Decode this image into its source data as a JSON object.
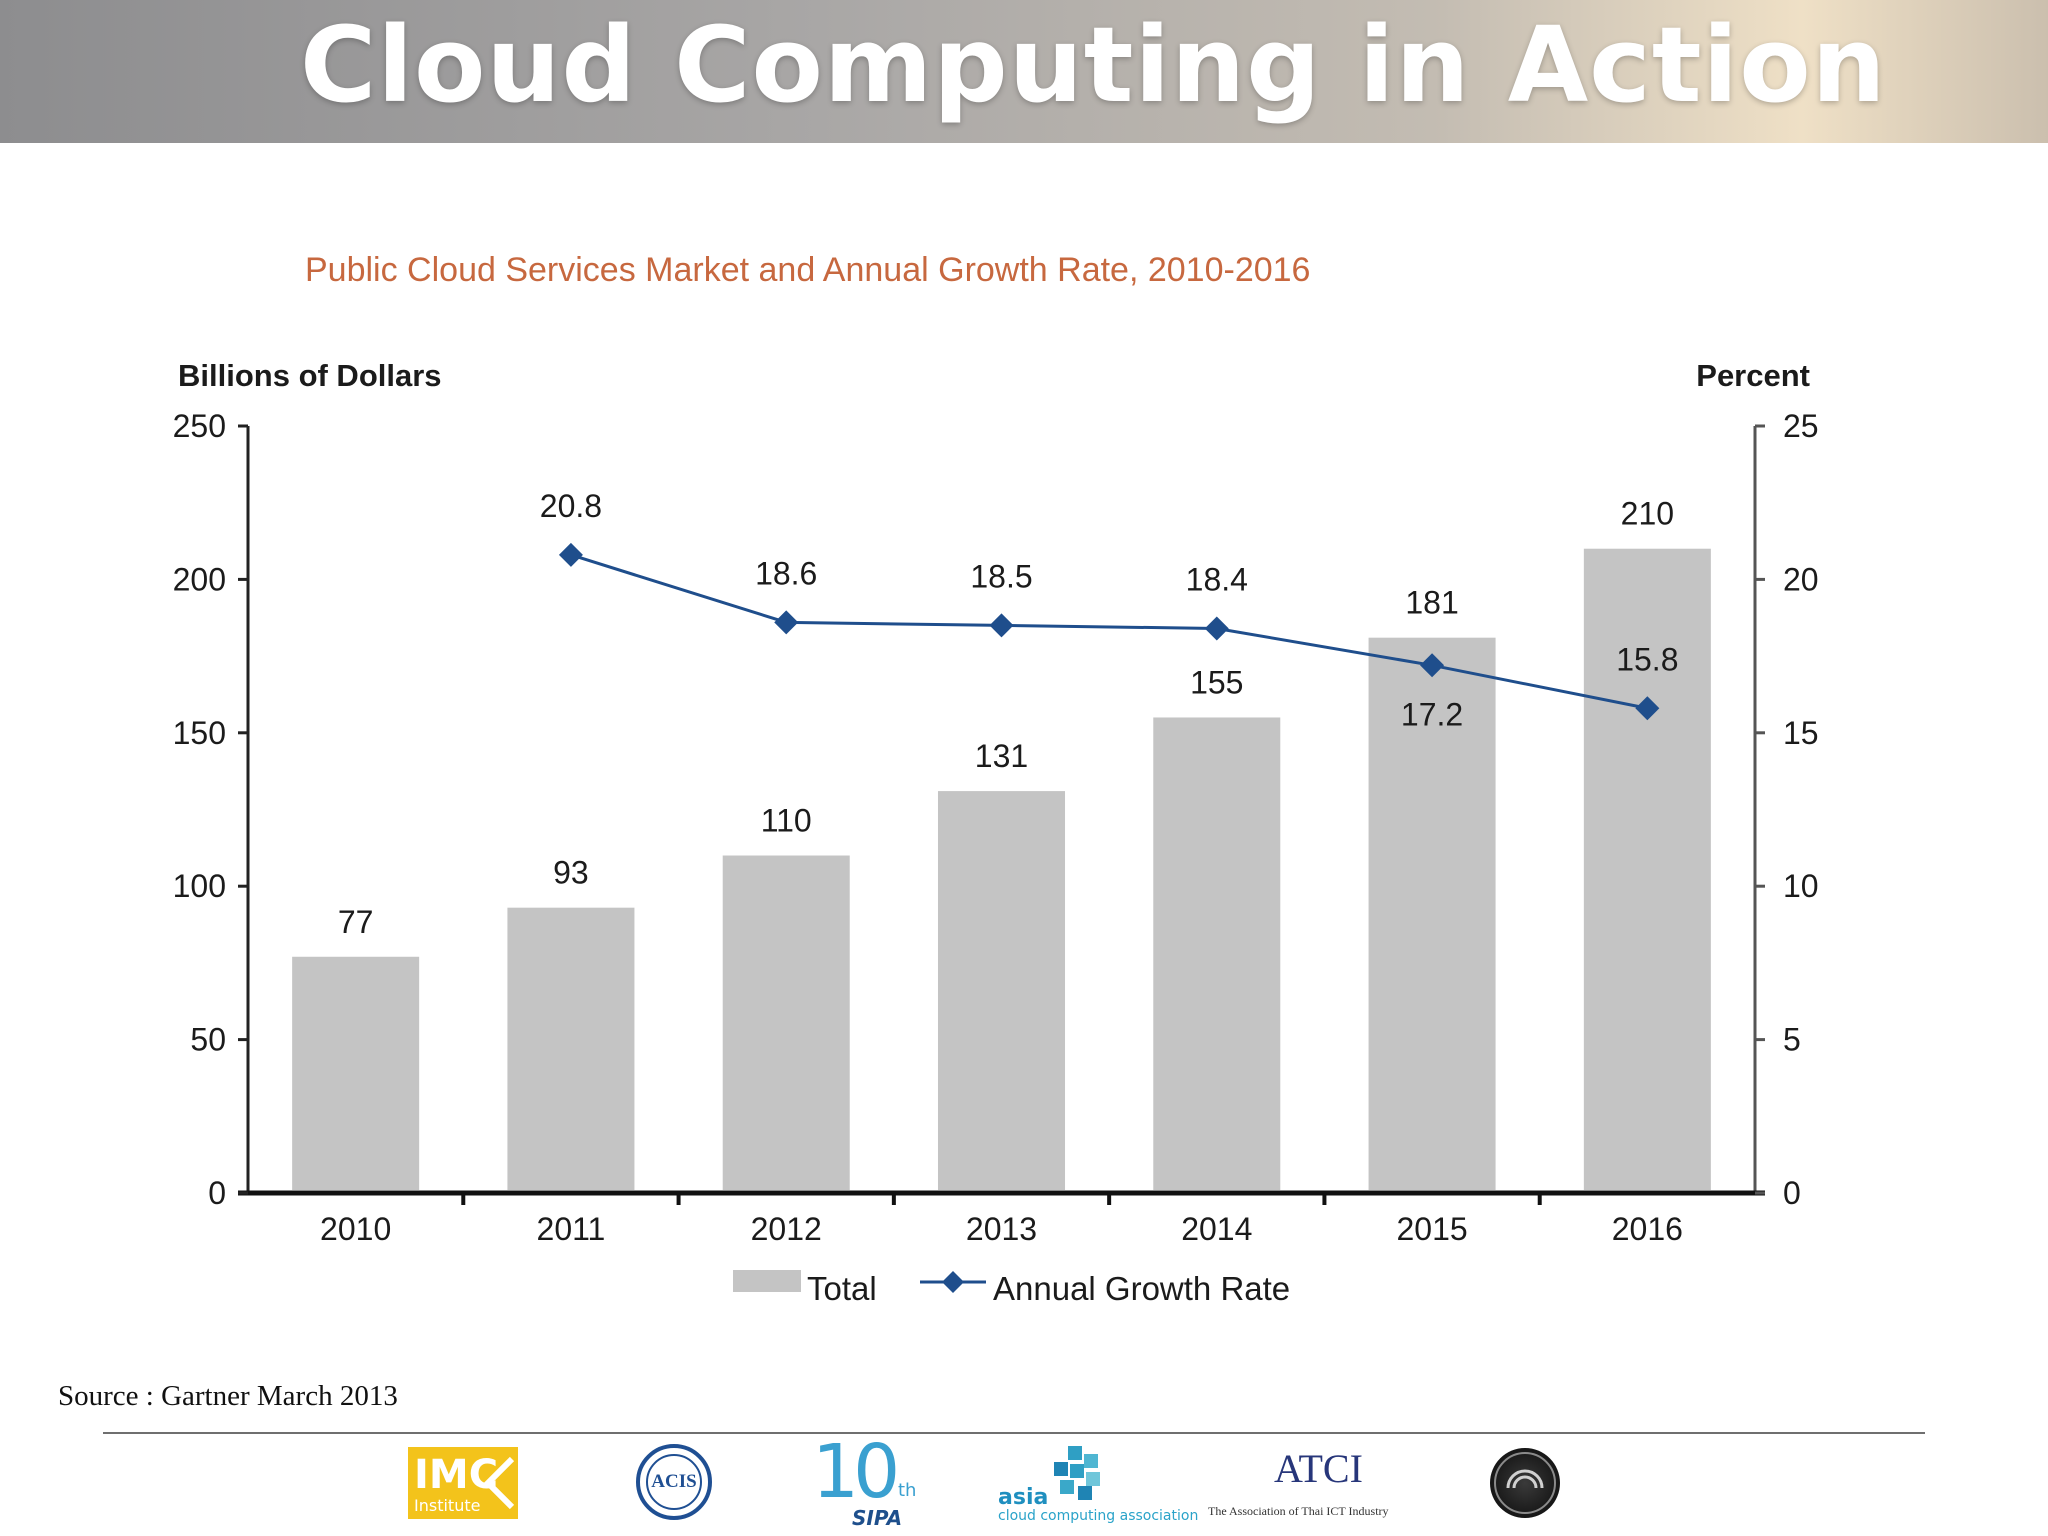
{
  "banner": {
    "title": "Cloud Computing in Action"
  },
  "chart_data": {
    "type": "bar",
    "title": "Public Cloud Services Market and Annual Growth Rate, 2010-2016",
    "categories": [
      "2010",
      "2011",
      "2012",
      "2013",
      "2014",
      "2015",
      "2016"
    ],
    "ylabel": "Billions of Dollars",
    "y2label": "Percent",
    "ylim": [
      0,
      250
    ],
    "y2lim": [
      0,
      25
    ],
    "yticks": [
      "0",
      "50",
      "100",
      "150",
      "200",
      "250"
    ],
    "y2ticks": [
      "0",
      "5",
      "10",
      "15",
      "20",
      "25"
    ],
    "grid": false,
    "legend_position": "bottom",
    "colors": {
      "bar": "#c4c4c4",
      "line": "#1f4e8c",
      "title": "#c7683f"
    },
    "series": [
      {
        "name": "Total",
        "type": "bar",
        "axis": "left",
        "values": [
          77,
          93,
          110,
          131,
          155,
          181,
          210
        ],
        "labels": [
          "77",
          "93",
          "110",
          "131",
          "155",
          "181",
          "210"
        ]
      },
      {
        "name": "Annual Growth Rate",
        "type": "line",
        "axis": "right",
        "values": [
          null,
          20.8,
          18.6,
          18.5,
          18.4,
          17.2,
          15.8
        ],
        "labels": [
          "",
          "20.8",
          "18.6",
          "18.5",
          "18.4",
          "17.2",
          "15.8"
        ]
      }
    ]
  },
  "footer": {
    "source": "Source :  Gartner March 2013",
    "logos": {
      "imc": {
        "text": "IMC",
        "sub": "Institute"
      },
      "acis": {
        "text": "ACIS"
      },
      "sipa": {
        "ten": "10",
        "th": "th",
        "name": "SIPA"
      },
      "asia": {
        "word": "asia",
        "sub": "cloud computing association"
      },
      "atci": {
        "word": "ATCI",
        "sub": "The Association of Thai ICT Industry"
      }
    }
  }
}
